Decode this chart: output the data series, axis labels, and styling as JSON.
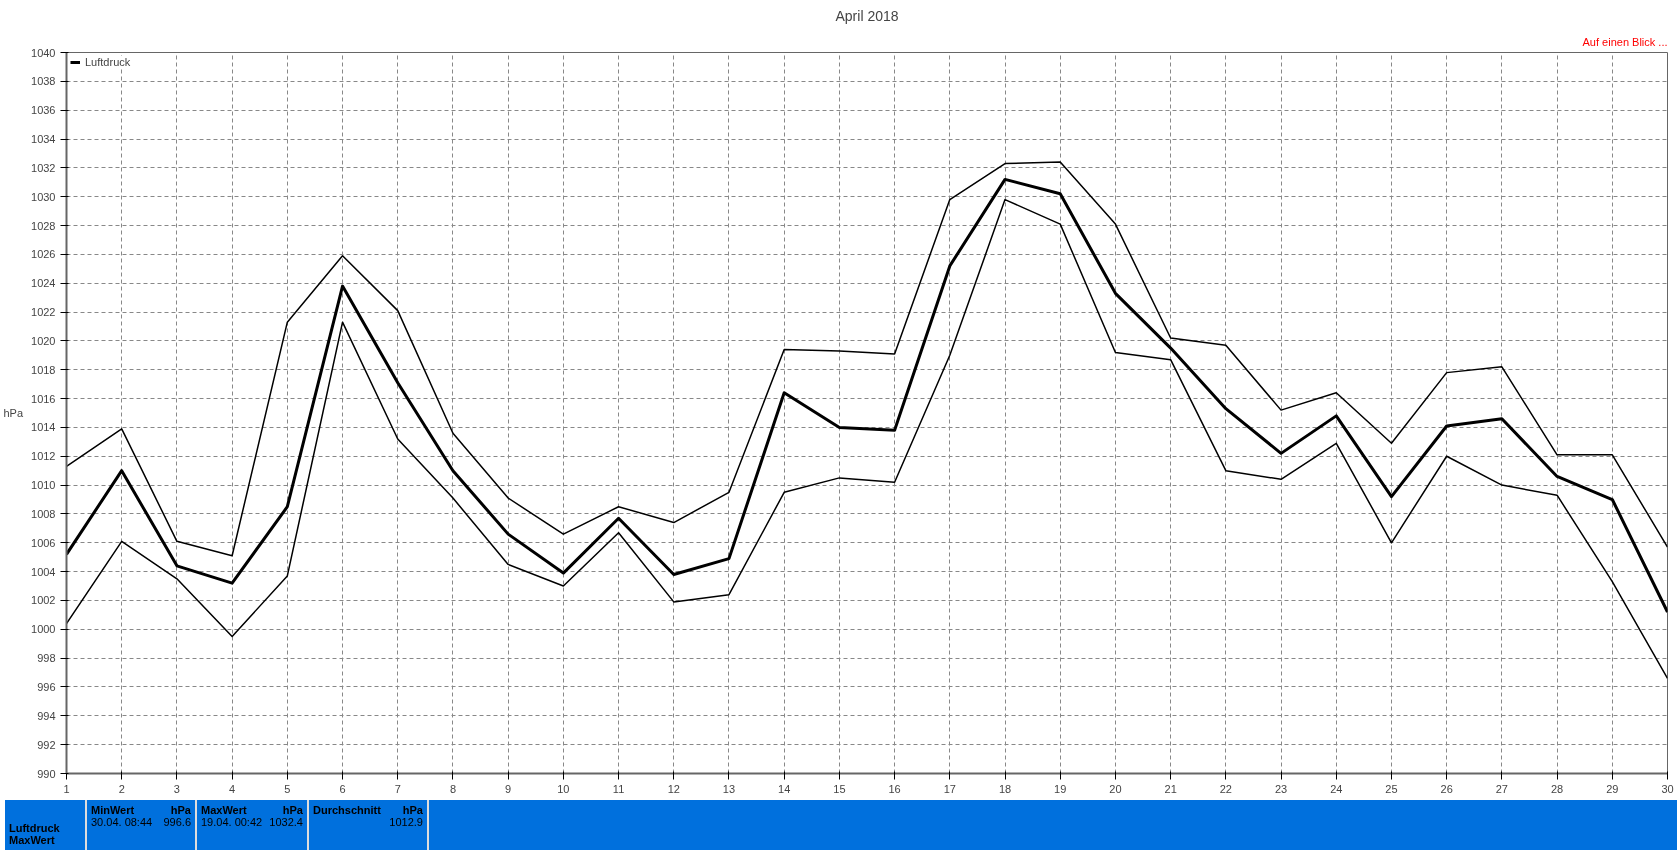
{
  "chart_data": {
    "type": "line",
    "title": "April 2018",
    "ylabel": "hPa",
    "x": [
      1,
      2,
      3,
      4,
      5,
      6,
      7,
      8,
      9,
      10,
      11,
      12,
      13,
      14,
      15,
      16,
      17,
      18,
      19,
      20,
      21,
      22,
      23,
      24,
      25,
      26,
      27,
      28,
      29,
      30
    ],
    "xlim": [
      1,
      30
    ],
    "xticks": [
      1,
      2,
      3,
      4,
      5,
      6,
      7,
      8,
      9,
      10,
      11,
      12,
      13,
      14,
      15,
      16,
      17,
      18,
      19,
      20,
      21,
      22,
      23,
      24,
      25,
      26,
      27,
      28,
      29,
      30
    ],
    "ylim": [
      990,
      1040
    ],
    "yticks": [
      990,
      992,
      994,
      996,
      998,
      1000,
      1002,
      1004,
      1006,
      1008,
      1010,
      1012,
      1014,
      1016,
      1018,
      1020,
      1022,
      1024,
      1026,
      1028,
      1030,
      1032,
      1034,
      1036,
      1038,
      1040
    ],
    "grid": true,
    "legend": "top left",
    "line_style": "solid",
    "series": [
      {
        "color": "#000000",
        "values": [
          1011.3,
          1013.9,
          1006.1,
          1005.1,
          1021.3,
          1025.9,
          1022.1,
          1013.6,
          1009.1,
          1006.6,
          1008.5,
          1007.4,
          1009.5,
          1019.4,
          1019.3,
          1019.1,
          1029.8,
          1032.3,
          1032.4,
          1028.1,
          1020.2,
          1019.7,
          1015.2,
          1016.4,
          1012.9,
          1017.8,
          1018.2,
          1012.1,
          1012.1,
          1005.7
        ]
      },
      {
        "name": "Luftdruck",
        "color": "#000000",
        "values": [
          1005.2,
          1011.0,
          1004.4,
          1003.2,
          1008.5,
          1023.8,
          1017.1,
          1011.0,
          1006.6,
          1003.9,
          1007.7,
          1003.8,
          1004.9,
          1016.4,
          1014.0,
          1013.8,
          1025.2,
          1031.2,
          1030.2,
          1023.3,
          1019.5,
          1015.3,
          1012.2,
          1014.8,
          1009.2,
          1014.1,
          1014.6,
          1010.6,
          1009.0,
          1001.2
        ]
      },
      {
        "color": "#000000",
        "values": [
          1000.4,
          1006.1,
          1003.5,
          999.5,
          1003.7,
          1021.3,
          1013.2,
          1009.1,
          1004.5,
          1003.0,
          1006.7,
          1001.9,
          1002.4,
          1009.5,
          1010.5,
          1010.2,
          1019.0,
          1029.8,
          1028.1,
          1019.2,
          1018.7,
          1011.0,
          1010.4,
          1012.9,
          1006.0,
          1012.0,
          1010.0,
          1009.3,
          1003.3,
          996.6
        ]
      }
    ],
    "annotations": [
      "Auf einen Blick ...",
      "Luftdruck",
      "MaxWert",
      "MinWert",
      "hPa",
      "30.04.  08:44",
      "996.6",
      "MaxWert",
      "hPa",
      "19.04.  00:42",
      "1032.4",
      "Durchschnitt",
      "hPa",
      "1012.9"
    ]
  }
}
